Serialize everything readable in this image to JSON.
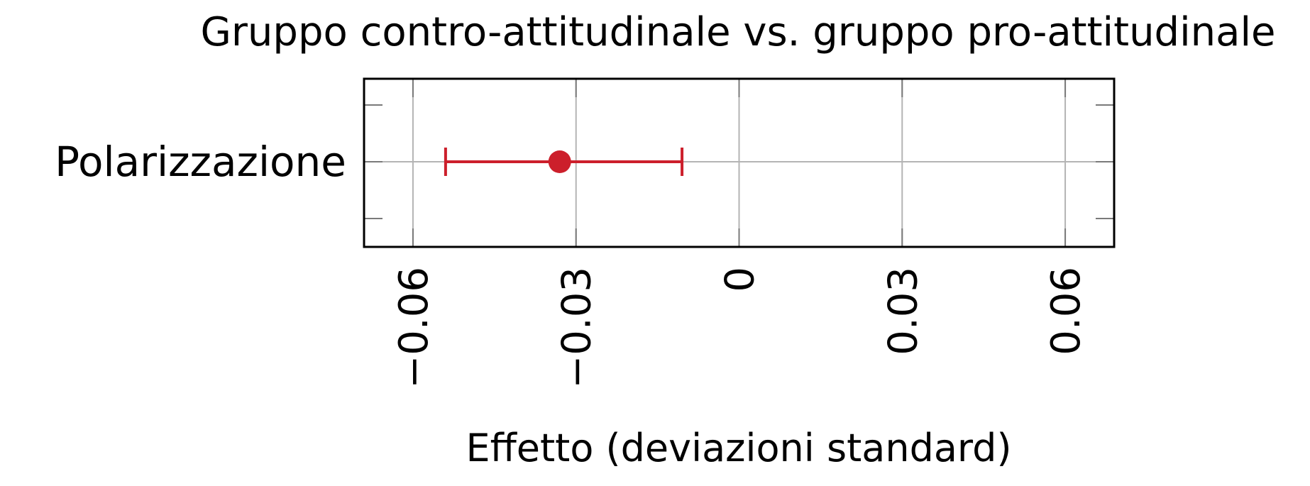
{
  "chart_data": {
    "type": "scatter",
    "title": "Gruppo contro-attitudinale vs. gruppo pro-attitudinale",
    "xlabel": "Effetto (deviazioni standard)",
    "ylabel": "",
    "categories": [
      "Polarizzazione"
    ],
    "xlim": [
      -0.069,
      0.069
    ],
    "xticks": [
      -0.06,
      -0.03,
      0,
      0.03,
      0.06
    ],
    "xtick_labels": [
      "−0.06",
      "−0.03",
      "0",
      "0.03",
      "0.06"
    ],
    "grid": true,
    "series": [
      {
        "category": "Polarizzazione",
        "estimate": -0.033,
        "ci_low": -0.054,
        "ci_high": -0.0105,
        "color": "#cc1f2b"
      }
    ]
  }
}
